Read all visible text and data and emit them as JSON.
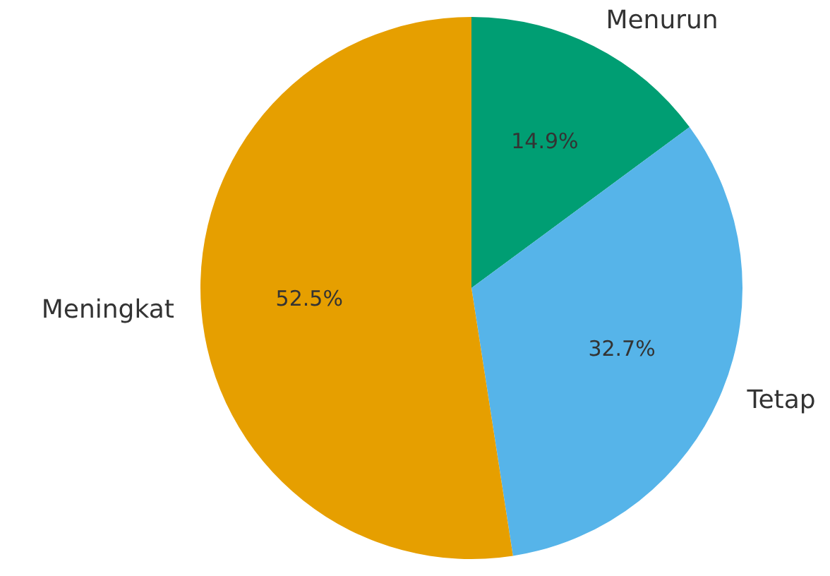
{
  "chart_data": {
    "type": "pie",
    "categories": [
      "Menurun",
      "Tetap",
      "Meningkat"
    ],
    "values": [
      14.9,
      32.7,
      52.5
    ],
    "colors": [
      "#009e73",
      "#56b4e9",
      "#e69f00"
    ],
    "value_labels": [
      "14.9%",
      "32.7%",
      "52.5%"
    ],
    "legend": false
  }
}
